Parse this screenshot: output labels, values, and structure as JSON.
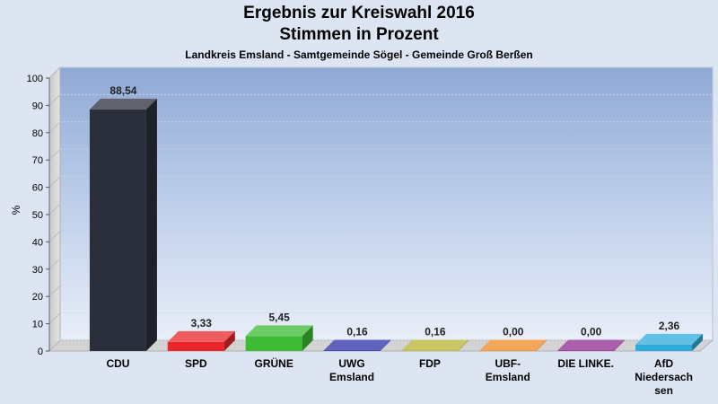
{
  "header": {
    "title_line1": "Ergebnis zur Kreiswahl 2016",
    "title_line2": "Stimmen in Prozent",
    "subtitle": "Landkreis Emsland - Samtgemeinde Sögel - Gemeinde Groß Berßen"
  },
  "chart_data": {
    "type": "bar",
    "title": "Ergebnis zur Kreiswahl 2016 Stimmen in Prozent",
    "subtitle": "Landkreis Emsland - Samtgemeinde Sögel - Gemeinde Groß Berßen",
    "xlabel": "",
    "ylabel": "%",
    "ylim": [
      0,
      100
    ],
    "yticks": [
      0,
      10,
      20,
      30,
      40,
      50,
      60,
      70,
      80,
      90,
      100
    ],
    "grid": true,
    "categories": [
      [
        "CDU"
      ],
      [
        "SPD"
      ],
      [
        "GRÜNE"
      ],
      [
        "UWG",
        "Emsland"
      ],
      [
        "FDP"
      ],
      [
        "UBF-",
        "Emsland"
      ],
      [
        "DIE LINKE."
      ],
      [
        "AfD",
        "Niedersach",
        "sen"
      ]
    ],
    "values": [
      88.54,
      3.33,
      5.45,
      0.16,
      0.16,
      0.0,
      0.0,
      2.36
    ],
    "value_labels": [
      "88,54",
      "3,33",
      "5,45",
      "0,16",
      "0,16",
      "0,00",
      "0,00",
      "2,36"
    ],
    "colors": [
      "#2b2f3b",
      "#e8262b",
      "#3dbb34",
      "#2a2fa8",
      "#b6b230",
      "#f08a24",
      "#8e2a8e",
      "#2eaadc"
    ]
  }
}
